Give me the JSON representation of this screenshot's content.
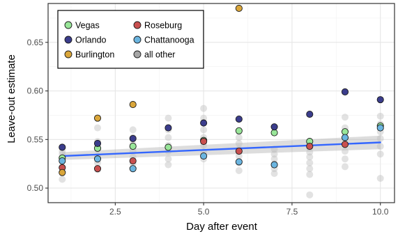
{
  "chart_data": {
    "type": "scatter",
    "title": "",
    "xlabel": "Day after event",
    "ylabel": "Leave-out estimate",
    "xlim": [
      0.6,
      10.4
    ],
    "ylim": [
      0.485,
      0.69
    ],
    "x_ticks": [
      2.5,
      5.0,
      7.5,
      10.0
    ],
    "x_tick_labels": [
      "2.5",
      "5.0",
      "7.5",
      "10.0"
    ],
    "y_ticks": [
      0.5,
      0.55,
      0.6,
      0.65
    ],
    "y_tick_labels": [
      "0.50",
      "0.55",
      "0.60",
      "0.65"
    ],
    "grid": true,
    "legend_position": "top-left",
    "trend": {
      "type": "linear fit with confidence band",
      "color": "#3366ff",
      "start": [
        1,
        0.533
      ],
      "end": [
        10,
        0.547
      ],
      "band_start": [
        0.529,
        0.537
      ],
      "band_end": [
        0.54,
        0.554
      ]
    },
    "background_series": {
      "name": "all other",
      "color": "#bfbfbf",
      "x": [
        1,
        1,
        1,
        1,
        1,
        2,
        2,
        2,
        2,
        2,
        2,
        3,
        3,
        3,
        3,
        3,
        3,
        4,
        4,
        4,
        4,
        4,
        4,
        4,
        5,
        5,
        5,
        5,
        5,
        5,
        5,
        6,
        6,
        6,
        6,
        6,
        6,
        6,
        7,
        7,
        7,
        7,
        7,
        7,
        8,
        8,
        8,
        8,
        8,
        8,
        8,
        8,
        9,
        9,
        9,
        9,
        9,
        9,
        9,
        10,
        10,
        10,
        10,
        10,
        10,
        10
      ],
      "y": [
        0.509,
        0.522,
        0.528,
        0.535,
        0.538,
        0.562,
        0.548,
        0.54,
        0.533,
        0.526,
        0.519,
        0.56,
        0.552,
        0.545,
        0.538,
        0.532,
        0.525,
        0.572,
        0.56,
        0.552,
        0.544,
        0.538,
        0.53,
        0.524,
        0.582,
        0.572,
        0.56,
        0.552,
        0.544,
        0.537,
        0.53,
        0.558,
        0.552,
        0.546,
        0.54,
        0.533,
        0.526,
        0.518,
        0.54,
        0.535,
        0.53,
        0.525,
        0.52,
        0.515,
        0.548,
        0.542,
        0.537,
        0.532,
        0.526,
        0.52,
        0.514,
        0.493,
        0.573,
        0.562,
        0.552,
        0.545,
        0.538,
        0.53,
        0.522,
        0.574,
        0.566,
        0.558,
        0.551,
        0.543,
        0.535,
        0.51
      ]
    },
    "series": [
      {
        "name": "Vegas",
        "color": "#99e699",
        "x": [
          1,
          2,
          3,
          4,
          5,
          6,
          7,
          8,
          9,
          10
        ],
        "y": [
          0.531,
          0.541,
          0.543,
          0.542,
          0.549,
          0.559,
          0.557,
          0.548,
          0.558,
          0.564
        ]
      },
      {
        "name": "Roseburg",
        "color": "#c9504f",
        "x": [
          1,
          2,
          3,
          5,
          6,
          8,
          9
        ],
        "y": [
          0.521,
          0.52,
          0.528,
          0.548,
          0.538,
          0.543,
          0.545
        ]
      },
      {
        "name": "Orlando",
        "color": "#3b3d8c",
        "x": [
          1,
          2,
          3,
          4,
          5,
          6,
          7,
          8,
          9,
          10
        ],
        "y": [
          0.542,
          0.546,
          0.551,
          0.562,
          0.567,
          0.571,
          0.563,
          0.576,
          0.599,
          0.591
        ]
      },
      {
        "name": "Chattanooga",
        "color": "#6bb5e0",
        "x": [
          1,
          2,
          3,
          5,
          6,
          7,
          9,
          10
        ],
        "y": [
          0.528,
          0.53,
          0.52,
          0.533,
          0.527,
          0.524,
          0.552,
          0.562
        ]
      },
      {
        "name": "Burlington",
        "color": "#daa63a",
        "x": [
          1,
          2,
          3,
          6
        ],
        "y": [
          0.516,
          0.572,
          0.586,
          0.685
        ]
      },
      {
        "name": "all other",
        "color": "#a6a6a6",
        "x": [],
        "y": []
      }
    ]
  }
}
